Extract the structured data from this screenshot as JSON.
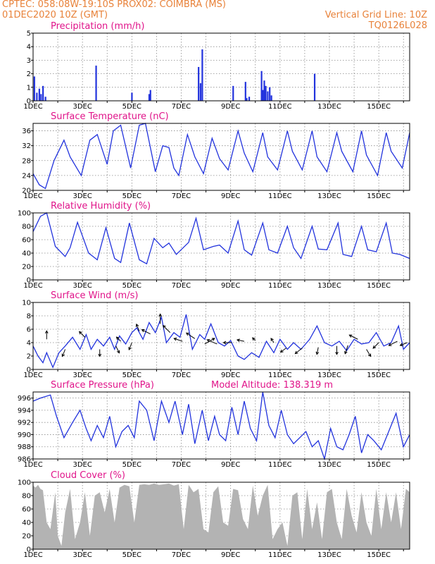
{
  "header": {
    "line1": "CPTEC:   058:08W-19:10S   PROX02: COIMBRA (MS)",
    "line2_left": "01DEC2020 10Z (GMT)",
    "line2_right": "Vertical Grid Line: 10Z",
    "line3_right": "TQ0126L028"
  },
  "colors": {
    "header": "#e8823a",
    "title": "#e0148a",
    "series": "#2233dd",
    "bars": "#2233dd",
    "cloud": "#b3b3b3"
  },
  "chart_data": [
    {
      "type": "bar",
      "title": "Precipitation (mm/h)",
      "ylim": [
        0,
        5
      ],
      "yticks": [
        0,
        1,
        2,
        3,
        4,
        5
      ],
      "xlabels": [
        "1DEC",
        "3DEC",
        "5DEC",
        "7DEC",
        "9DEC",
        "11DEC",
        "13DEC",
        "15DEC"
      ],
      "xlim_days": [
        0,
        15.25
      ],
      "bars": [
        {
          "x": 0.05,
          "y": 1.8
        },
        {
          "x": 0.15,
          "y": 0.6
        },
        {
          "x": 0.25,
          "y": 0.9
        },
        {
          "x": 0.32,
          "y": 0.5
        },
        {
          "x": 0.4,
          "y": 1.1
        },
        {
          "x": 0.5,
          "y": 0.3
        },
        {
          "x": 2.55,
          "y": 2.6
        },
        {
          "x": 4.0,
          "y": 0.6
        },
        {
          "x": 4.7,
          "y": 0.5
        },
        {
          "x": 4.75,
          "y": 0.8
        },
        {
          "x": 6.7,
          "y": 2.5
        },
        {
          "x": 6.78,
          "y": 1.3
        },
        {
          "x": 6.85,
          "y": 3.8
        },
        {
          "x": 8.1,
          "y": 1.1
        },
        {
          "x": 8.6,
          "y": 1.4
        },
        {
          "x": 8.65,
          "y": 0.2
        },
        {
          "x": 8.75,
          "y": 0.3
        },
        {
          "x": 9.25,
          "y": 2.2
        },
        {
          "x": 9.3,
          "y": 0.8
        },
        {
          "x": 9.36,
          "y": 1.5
        },
        {
          "x": 9.42,
          "y": 1.1
        },
        {
          "x": 9.5,
          "y": 0.7
        },
        {
          "x": 9.58,
          "y": 1.0
        },
        {
          "x": 9.65,
          "y": 0.4
        },
        {
          "x": 11.4,
          "y": 2.0
        }
      ]
    },
    {
      "type": "line",
      "title": "Surface Temperature (nC)",
      "ylim": [
        20,
        38
      ],
      "yticks": [
        20,
        24,
        28,
        32,
        36
      ],
      "xlabels": [
        "1DEC",
        "3DEC",
        "5DEC",
        "7DEC",
        "9DEC",
        "11DEC",
        "13DEC",
        "15DEC"
      ],
      "xlim_days": [
        0,
        15.25
      ],
      "x": [
        0,
        0.25,
        0.5,
        0.85,
        1.25,
        1.5,
        1.95,
        2.3,
        2.6,
        3.0,
        3.25,
        3.55,
        3.95,
        4.3,
        4.55,
        4.95,
        5.25,
        5.5,
        5.7,
        5.9,
        6.25,
        6.55,
        6.9,
        7.25,
        7.55,
        7.9,
        8.3,
        8.55,
        8.9,
        9.3,
        9.5,
        9.9,
        10.3,
        10.5,
        10.9,
        11.3,
        11.5,
        11.9,
        12.3,
        12.5,
        12.95,
        13.3,
        13.5,
        13.95,
        14.3,
        14.5,
        14.95,
        15.25
      ],
      "values": [
        24.5,
        21.5,
        20.5,
        28.0,
        33.5,
        29.0,
        24.0,
        33.5,
        35.0,
        27.0,
        36.0,
        37.5,
        26.0,
        37.5,
        38.0,
        25.0,
        32.0,
        31.5,
        26.0,
        24.0,
        35.0,
        29.0,
        24.5,
        34.0,
        28.5,
        25.5,
        36.0,
        30.0,
        25.0,
        35.5,
        29.0,
        25.5,
        36.0,
        30.5,
        25.5,
        36.0,
        29.0,
        25.0,
        35.5,
        30.5,
        25.0,
        36.0,
        29.5,
        24.0,
        35.5,
        30.5,
        26.0,
        35.5
      ]
    },
    {
      "type": "line",
      "title": "Relative Humidity (%)",
      "ylim": [
        0,
        100
      ],
      "yticks": [
        0,
        20,
        40,
        60,
        80,
        100
      ],
      "xlabels": [
        "1DEC",
        "3DEC",
        "5DEC",
        "7DEC",
        "9DEC",
        "11DEC",
        "13DEC",
        "15DEC"
      ],
      "xlim_days": [
        0,
        15.25
      ],
      "x": [
        0,
        0.3,
        0.55,
        0.9,
        1.3,
        1.5,
        1.8,
        2.25,
        2.6,
        2.95,
        3.3,
        3.55,
        3.9,
        4.3,
        4.6,
        4.9,
        5.25,
        5.5,
        5.8,
        6.3,
        6.6,
        6.9,
        7.3,
        7.55,
        7.9,
        8.3,
        8.55,
        8.85,
        9.3,
        9.55,
        9.9,
        10.3,
        10.55,
        10.85,
        11.3,
        11.55,
        11.9,
        12.35,
        12.55,
        12.9,
        13.3,
        13.55,
        13.9,
        14.3,
        14.55,
        14.85,
        15.25
      ],
      "values": [
        72,
        95,
        100,
        50,
        35,
        48,
        86,
        40,
        30,
        78,
        32,
        26,
        85,
        30,
        24,
        62,
        48,
        55,
        38,
        56,
        92,
        45,
        50,
        52,
        40,
        88,
        45,
        37,
        85,
        45,
        40,
        80,
        48,
        32,
        80,
        46,
        45,
        85,
        38,
        35,
        80,
        45,
        42,
        85,
        40,
        38,
        32
      ]
    },
    {
      "type": "line",
      "title": "Surface Wind (m/s)",
      "ylim": [
        0,
        10
      ],
      "yticks": [
        0,
        2,
        4,
        6,
        8,
        10
      ],
      "xlabels": [
        "1DEC",
        "3DEC",
        "5DEC",
        "7DEC",
        "9DEC",
        "11DEC",
        "13DEC",
        "15DEC"
      ],
      "xlim_days": [
        0,
        15.25
      ],
      "x": [
        0,
        0.2,
        0.4,
        0.55,
        0.8,
        1.05,
        1.3,
        1.6,
        1.9,
        2.15,
        2.35,
        2.6,
        2.85,
        3.1,
        3.3,
        3.5,
        3.75,
        4.0,
        4.2,
        4.45,
        4.7,
        4.95,
        5.2,
        5.4,
        5.7,
        5.95,
        6.2,
        6.45,
        6.75,
        6.95,
        7.2,
        7.5,
        7.75,
        8.0,
        8.3,
        8.55,
        8.85,
        9.15,
        9.45,
        9.75,
        10.0,
        10.3,
        10.55,
        10.85,
        11.2,
        11.5,
        11.8,
        12.1,
        12.4,
        12.7,
        13.0,
        13.3,
        13.6,
        13.9,
        14.2,
        14.5,
        14.8,
        15.0,
        15.25
      ],
      "values": [
        3.5,
        2.0,
        1.0,
        2.5,
        0.3,
        2.5,
        3.5,
        4.8,
        3.0,
        5.2,
        3.0,
        4.5,
        3.5,
        4.8,
        3.0,
        5.0,
        3.8,
        5.5,
        6.2,
        4.5,
        7.0,
        5.5,
        7.8,
        4.0,
        5.5,
        4.8,
        8.2,
        3.0,
        5.2,
        4.5,
        6.8,
        4.0,
        3.5,
        4.3,
        2.0,
        1.5,
        2.5,
        1.8,
        4.2,
        2.5,
        4.5,
        3.0,
        4.0,
        3.0,
        4.5,
        6.5,
        4.0,
        3.5,
        4.2,
        2.8,
        4.5,
        3.8,
        4.0,
        5.5,
        3.5,
        4.0,
        6.5,
        3.0,
        4.0
      ],
      "arrows": [
        {
          "x": 0.55,
          "y": 4.5,
          "dx": 0,
          "dy": -12
        },
        {
          "x": 1.3,
          "y": 3.0,
          "dx": -4,
          "dy": 10
        },
        {
          "x": 2.1,
          "y": 4.8,
          "dx": -8,
          "dy": -8
        },
        {
          "x": 2.7,
          "y": 3.0,
          "dx": 0,
          "dy": 10
        },
        {
          "x": 3.35,
          "y": 3.5,
          "dx": 5,
          "dy": 10
        },
        {
          "x": 3.55,
          "y": 4.2,
          "dx": -6,
          "dy": -6
        },
        {
          "x": 4.0,
          "y": 4.0,
          "dx": -4,
          "dy": 10
        },
        {
          "x": 4.3,
          "y": 5.7,
          "dx": -4,
          "dy": -10
        },
        {
          "x": 4.75,
          "y": 5.3,
          "dx": -12,
          "dy": -6
        },
        {
          "x": 5.15,
          "y": 6.8,
          "dx": 0,
          "dy": -14
        },
        {
          "x": 5.55,
          "y": 5.5,
          "dx": -10,
          "dy": -10
        },
        {
          "x": 6.05,
          "y": 4.2,
          "dx": -12,
          "dy": -4
        },
        {
          "x": 6.55,
          "y": 4.6,
          "dx": -12,
          "dy": -8
        },
        {
          "x": 6.95,
          "y": 3.8,
          "dx": 14,
          "dy": -8
        },
        {
          "x": 7.45,
          "y": 3.8,
          "dx": -14,
          "dy": -6
        },
        {
          "x": 8.05,
          "y": 4.0,
          "dx": -12,
          "dy": 0
        },
        {
          "x": 8.55,
          "y": 4.2,
          "dx": -10,
          "dy": -2
        },
        {
          "x": 9.0,
          "y": 4.3,
          "dx": -4,
          "dy": -4
        },
        {
          "x": 9.75,
          "y": 4.0,
          "dx": -4,
          "dy": -6
        },
        {
          "x": 10.25,
          "y": 3.2,
          "dx": -8,
          "dy": 6
        },
        {
          "x": 10.9,
          "y": 3.2,
          "dx": -10,
          "dy": 8
        },
        {
          "x": 11.55,
          "y": 3.3,
          "dx": -2,
          "dy": 10
        },
        {
          "x": 12.3,
          "y": 3.5,
          "dx": 0,
          "dy": 12
        },
        {
          "x": 12.75,
          "y": 3.6,
          "dx": -4,
          "dy": 12
        },
        {
          "x": 13.15,
          "y": 4.5,
          "dx": -12,
          "dy": -6
        },
        {
          "x": 13.5,
          "y": 3.0,
          "dx": 6,
          "dy": 10
        },
        {
          "x": 14.0,
          "y": 4.0,
          "dx": -8,
          "dy": 8
        },
        {
          "x": 14.75,
          "y": 4.2,
          "dx": -12,
          "dy": 6
        },
        {
          "x": 15.15,
          "y": 4.0,
          "dx": -10,
          "dy": 4
        }
      ]
    },
    {
      "type": "line",
      "title": "Surface Pressure (hPa)",
      "annotation": "Model Altitude: 138.319 m",
      "ylim": [
        986,
        997
      ],
      "yticks": [
        986,
        988,
        990,
        992,
        994,
        996
      ],
      "xlabels": [
        "1DEC",
        "3DEC",
        "5DEC",
        "7DEC",
        "9DEC",
        "11DEC",
        "13DEC",
        "15DEC"
      ],
      "xlim_days": [
        0,
        15.25
      ],
      "x": [
        0,
        0.3,
        0.7,
        0.95,
        1.25,
        1.6,
        1.9,
        2.15,
        2.35,
        2.6,
        2.85,
        3.1,
        3.35,
        3.6,
        3.85,
        4.1,
        4.3,
        4.6,
        4.9,
        5.2,
        5.5,
        5.75,
        6.05,
        6.3,
        6.55,
        6.85,
        7.1,
        7.35,
        7.55,
        7.8,
        8.05,
        8.3,
        8.55,
        8.8,
        9.05,
        9.3,
        9.55,
        9.8,
        10.05,
        10.3,
        10.55,
        10.8,
        11.05,
        11.3,
        11.55,
        11.8,
        12.05,
        12.3,
        12.55,
        12.8,
        13.05,
        13.3,
        13.55,
        13.8,
        14.1,
        14.4,
        14.7,
        15.0,
        15.25
      ],
      "values": [
        995.5,
        996.0,
        996.5,
        993.0,
        989.5,
        992.0,
        994.0,
        991.0,
        989.0,
        991.5,
        989.5,
        993.0,
        988.0,
        990.5,
        991.5,
        989.5,
        995.5,
        994.0,
        989.0,
        995.5,
        992.0,
        995.5,
        990.0,
        995.0,
        988.5,
        994.0,
        989.0,
        993.0,
        990.0,
        989.0,
        994.5,
        990.0,
        995.5,
        991.0,
        989.0,
        997.0,
        991.5,
        989.5,
        994.0,
        990.0,
        988.5,
        989.5,
        990.5,
        988.0,
        989.0,
        986.0,
        991.0,
        988.0,
        987.5,
        990.0,
        993.0,
        987.0,
        990.0,
        989.0,
        987.5,
        990.5,
        993.5,
        988.0,
        990.0
      ]
    },
    {
      "type": "area",
      "title": "Cloud Cover (%)",
      "ylim": [
        0,
        100
      ],
      "yticks": [
        0,
        20,
        40,
        60,
        80,
        100
      ],
      "xlabels": [
        "1DEC",
        "3DEC",
        "5DEC",
        "7DEC",
        "9DEC",
        "11DEC",
        "13DEC",
        "15DEC"
      ],
      "xlim_days": [
        0,
        15.25
      ],
      "x": [
        0,
        0.1,
        0.2,
        0.3,
        0.4,
        0.55,
        0.7,
        0.9,
        1.0,
        1.15,
        1.3,
        1.5,
        1.7,
        1.9,
        2.1,
        2.3,
        2.5,
        2.7,
        2.9,
        3.1,
        3.3,
        3.5,
        3.7,
        3.9,
        4.1,
        4.3,
        4.5,
        4.7,
        4.9,
        5.1,
        5.3,
        5.5,
        5.7,
        5.9,
        6.1,
        6.3,
        6.5,
        6.7,
        6.9,
        7.1,
        7.3,
        7.5,
        7.7,
        7.9,
        8.1,
        8.3,
        8.5,
        8.7,
        8.9,
        9.1,
        9.3,
        9.5,
        9.7,
        9.9,
        10.1,
        10.3,
        10.5,
        10.7,
        10.9,
        11.1,
        11.3,
        11.5,
        11.7,
        11.9,
        12.1,
        12.3,
        12.5,
        12.7,
        12.9,
        13.1,
        13.3,
        13.5,
        13.7,
        13.9,
        14.1,
        14.3,
        14.5,
        14.7,
        14.9,
        15.1,
        15.25
      ],
      "values": [
        95,
        92,
        96,
        90,
        88,
        40,
        30,
        85,
        20,
        5,
        55,
        90,
        15,
        40,
        85,
        20,
        80,
        85,
        55,
        90,
        40,
        92,
        96,
        94,
        40,
        96,
        97,
        96,
        98,
        96,
        97,
        98,
        95,
        97,
        30,
        96,
        85,
        90,
        30,
        25,
        85,
        94,
        40,
        35,
        90,
        88,
        45,
        30,
        95,
        50,
        80,
        96,
        15,
        30,
        40,
        5,
        80,
        85,
        15,
        90,
        30,
        70,
        15,
        85,
        90,
        40,
        15,
        90,
        50,
        25,
        85,
        40,
        20,
        90,
        30,
        85,
        40,
        85,
        30,
        90,
        85
      ]
    }
  ]
}
